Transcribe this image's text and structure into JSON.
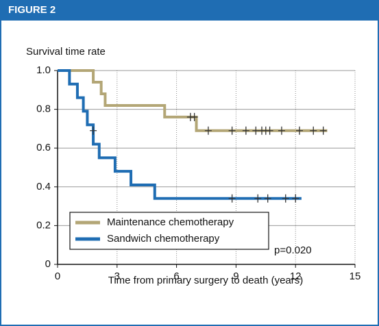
{
  "header": {
    "title": "FIGURE 2"
  },
  "chart_data": {
    "type": "step",
    "y_label": "Survival time rate",
    "x_label": "Time from primary surgery to death (years)",
    "xlim": [
      0,
      15
    ],
    "xticks": [
      0,
      3,
      6,
      9,
      12,
      15
    ],
    "ylim": [
      0,
      1
    ],
    "yticks": [
      0,
      0.2,
      0.4,
      0.6,
      0.8,
      {
        "value": 1,
        "label": "1.0"
      }
    ],
    "grid": true,
    "legend": "lower left",
    "annotation": "p=0.020",
    "series": [
      {
        "name": "Maintenance chemotherapy",
        "color": "#b3a676",
        "x": [
          0,
          1.8,
          1.8,
          2.2,
          2.2,
          2.4,
          2.4,
          5.4,
          5.4,
          7.0,
          7.0,
          13.6
        ],
        "values": [
          1,
          1,
          0.94,
          0.94,
          0.88,
          0.88,
          0.82,
          0.82,
          0.76,
          0.76,
          0.69,
          0.69
        ],
        "censor_x": [
          6.7,
          6.9,
          7.6,
          8.8,
          9.5,
          10.0,
          10.3,
          10.5,
          10.7,
          11.3,
          12.2,
          12.9,
          13.4
        ],
        "censor_values": [
          0.76,
          0.76,
          0.69,
          0.69,
          0.69,
          0.69,
          0.69,
          0.69,
          0.69,
          0.69,
          0.69,
          0.69,
          0.69
        ]
      },
      {
        "name": "Sandwich chemotherapy",
        "color": "#1f6db3",
        "x": [
          0,
          0.6,
          0.6,
          1.0,
          1.0,
          1.3,
          1.3,
          1.5,
          1.5,
          1.8,
          1.8,
          2.1,
          2.1,
          2.9,
          2.9,
          3.7,
          3.7,
          4.9,
          4.9,
          12.3
        ],
        "values": [
          1,
          1,
          0.93,
          0.93,
          0.86,
          0.86,
          0.79,
          0.79,
          0.72,
          0.72,
          0.62,
          0.62,
          0.55,
          0.55,
          0.48,
          0.48,
          0.41,
          0.41,
          0.34,
          0.34
        ],
        "censor_x": [
          1.8,
          8.8,
          10.1,
          10.6,
          11.5,
          12.0
        ],
        "censor_values": [
          0.69,
          0.34,
          0.34,
          0.34,
          0.34,
          0.34
        ]
      }
    ]
  }
}
